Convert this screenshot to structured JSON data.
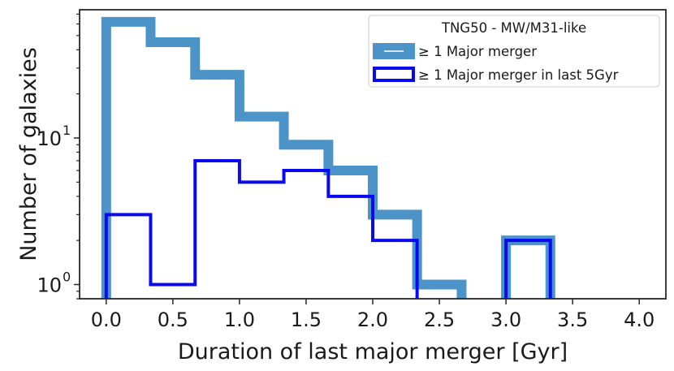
{
  "chart_data": {
    "type": "histogram",
    "yscale": "log",
    "xlabel": "Duration of last major merger [Gyr]",
    "ylabel": "Number of galaxies",
    "xlim": [
      -0.2,
      4.2
    ],
    "ylim": [
      0.8,
      75
    ],
    "x_ticks": [
      0.0,
      0.5,
      1.0,
      1.5,
      2.0,
      2.5,
      3.0,
      3.5,
      4.0
    ],
    "x_tick_labels": [
      "0.0",
      "0.5",
      "1.0",
      "1.5",
      "2.0",
      "2.5",
      "3.0",
      "3.5",
      "4.0"
    ],
    "y_major_ticks": [
      {
        "value": 1,
        "base": "10",
        "exp": "0"
      },
      {
        "value": 10,
        "base": "10",
        "exp": "1"
      }
    ],
    "bin_edges": [
      0.0,
      0.333,
      0.667,
      1.0,
      1.333,
      1.667,
      2.0,
      2.333,
      2.667,
      3.0,
      3.333,
      3.667,
      4.0
    ],
    "series": [
      {
        "name": "≥ 1 Major merger",
        "color": "#4c93c8",
        "style": "step-thick",
        "counts": [
          62,
          45,
          27,
          14,
          9,
          6,
          3,
          1,
          0,
          2,
          0,
          0
        ]
      },
      {
        "name": "≥ 1 Major merger in last 5Gyr",
        "color": "#0a0af0",
        "style": "step-thin",
        "counts": [
          3,
          1,
          7,
          5,
          6,
          4,
          2,
          0,
          0,
          2,
          0,
          0
        ]
      }
    ],
    "legend": {
      "title": "TNG50 - MW/M31-like",
      "placement": "top-right",
      "entries": [
        "≥ 1 Major merger",
        "≥ 1 Major merger in last 5Gyr"
      ]
    },
    "grid": false
  }
}
